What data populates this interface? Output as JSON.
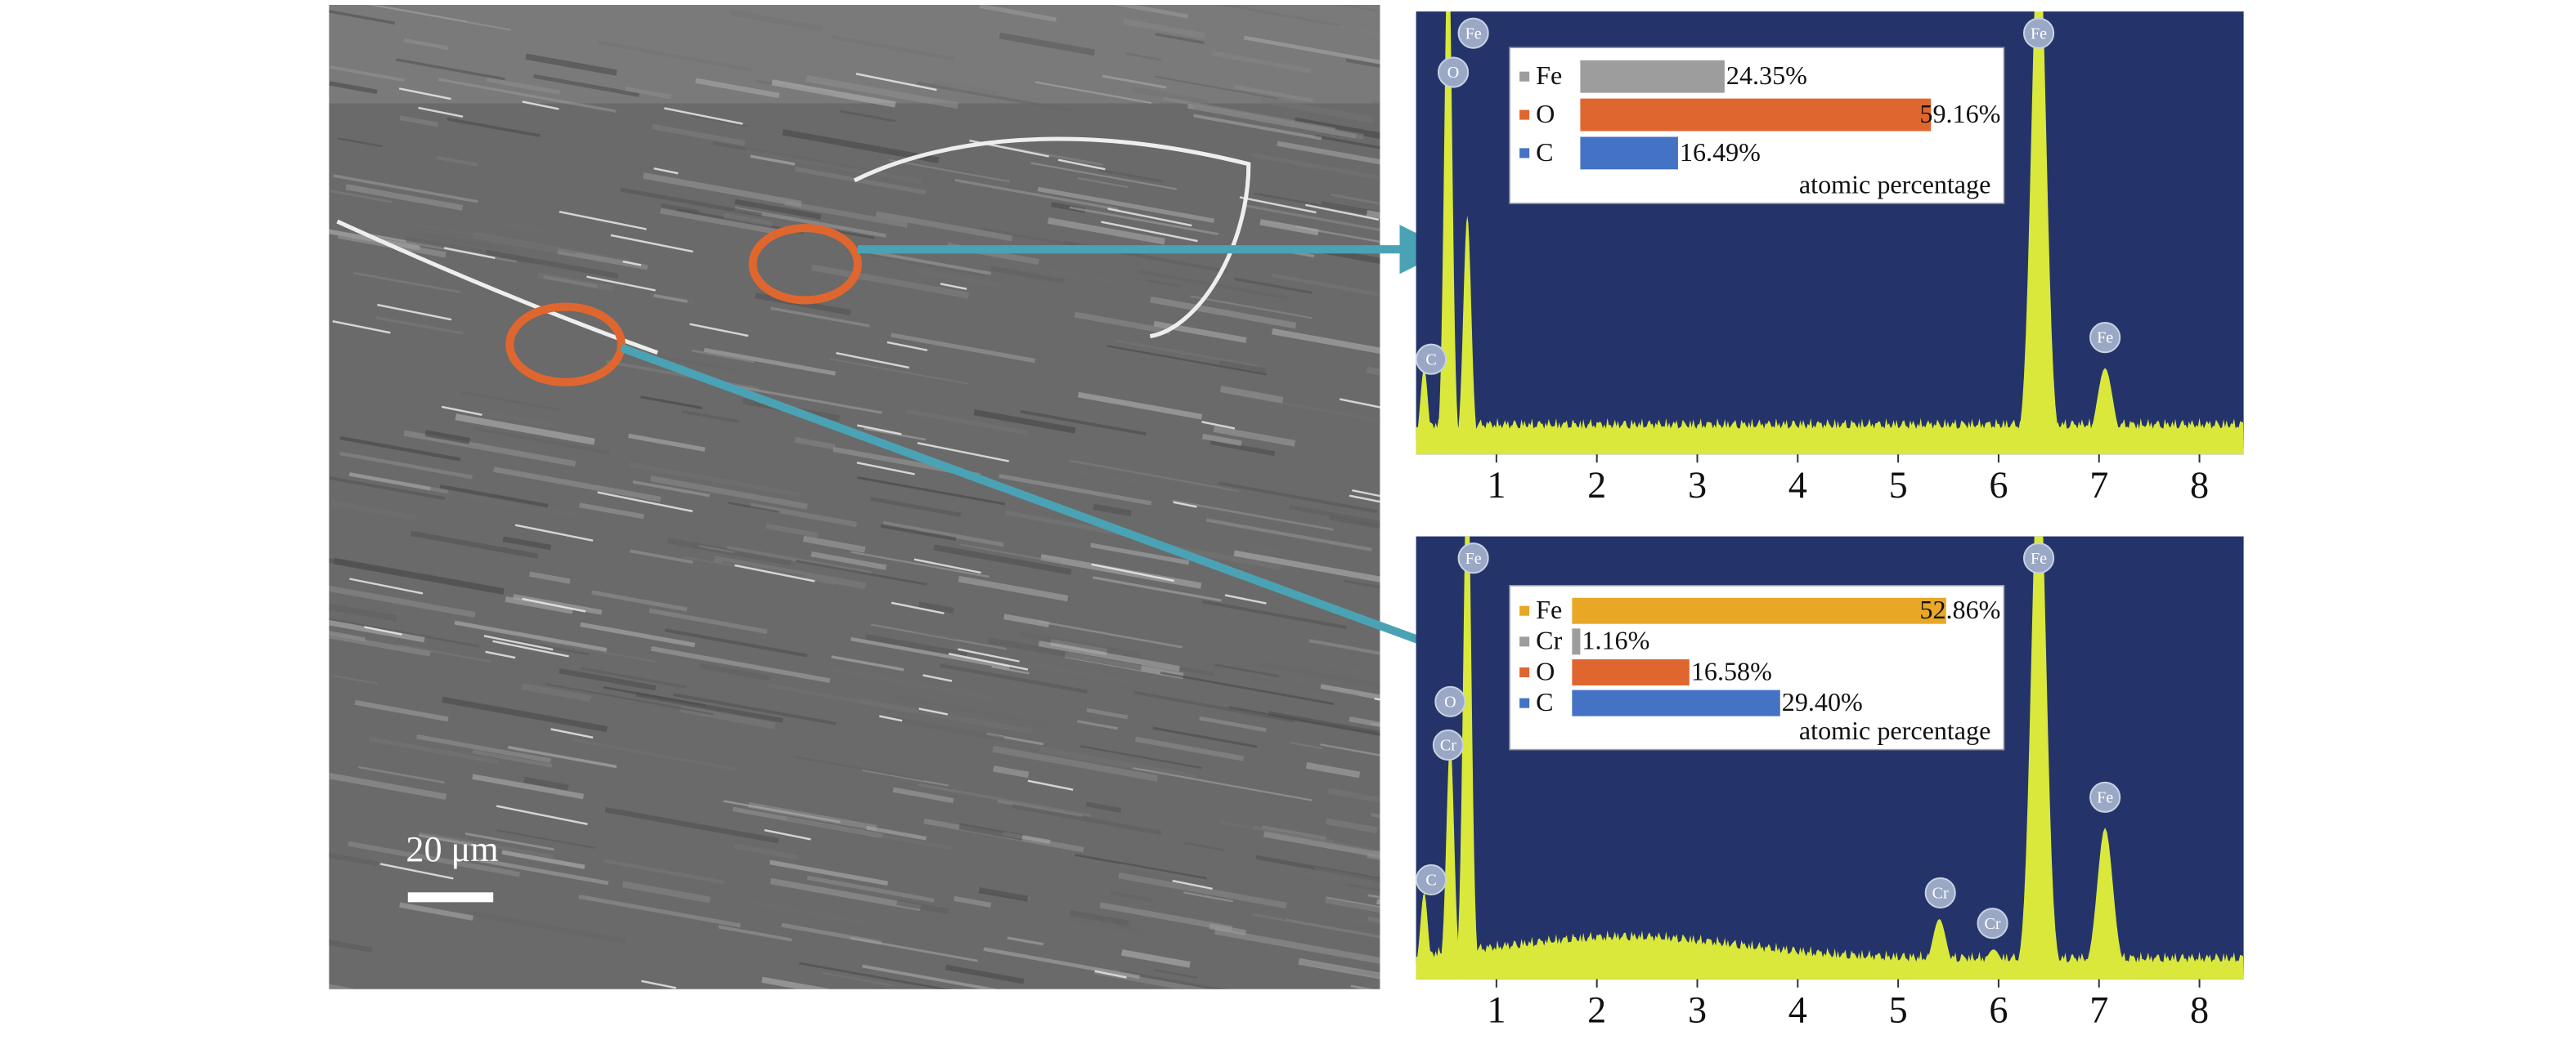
{
  "image": {
    "scale_bar": "20 μm"
  },
  "chart_data": [
    {
      "type": "spectrum",
      "xlim": [
        0.2,
        8.44
      ],
      "xticks": [
        1,
        2,
        3,
        4,
        5,
        6,
        7,
        8
      ],
      "ylim": [
        0,
        100
      ],
      "color": "#d9e83a",
      "peaks": [
        {
          "x": 0.28,
          "height": 18
        },
        {
          "x": 0.52,
          "height": 120
        },
        {
          "x": 0.71,
          "height": 53
        },
        {
          "x": 6.4,
          "height": 120
        },
        {
          "x": 7.06,
          "height": 18
        }
      ],
      "labels": [
        {
          "text": "O",
          "x": 0.57,
          "y": 86
        },
        {
          "text": "Fe",
          "x": 0.77,
          "y": 95
        },
        {
          "text": "C",
          "x": 0.35,
          "y": 20
        },
        {
          "text": "Fe",
          "x": 6.4,
          "y": 95
        },
        {
          "text": "Fe",
          "x": 7.06,
          "y": 25
        }
      ]
    },
    {
      "type": "bar",
      "categories": [
        "Fe",
        "O",
        "C"
      ],
      "values": [
        24.35,
        59.16,
        16.49
      ],
      "value_labels": [
        "24.35%",
        "59.16%",
        "16.49%"
      ],
      "colors": [
        "#9d9d9d",
        "#e0662f",
        "#4472c4"
      ],
      "xlabel": "atomic percentage"
    },
    {
      "type": "spectrum",
      "xlim": [
        0.2,
        8.44
      ],
      "xticks": [
        1,
        2,
        3,
        4,
        5,
        6,
        7,
        8
      ],
      "ylim": [
        0,
        100
      ],
      "color": "#d9e83a",
      "peaks": [
        {
          "x": 0.28,
          "height": 18
        },
        {
          "x": 0.54,
          "height": 53
        },
        {
          "x": 0.71,
          "height": 120
        },
        {
          "x": 5.41,
          "height": 12
        },
        {
          "x": 5.95,
          "height": 5
        },
        {
          "x": 6.4,
          "height": 120
        },
        {
          "x": 7.06,
          "height": 33
        }
      ],
      "labels": [
        {
          "text": "O",
          "x": 0.54,
          "y": 62
        },
        {
          "text": "Cr",
          "x": 0.52,
          "y": 52
        },
        {
          "text": "Fe",
          "x": 0.77,
          "y": 95
        },
        {
          "text": "C",
          "x": 0.35,
          "y": 21
        },
        {
          "text": "Cr",
          "x": 5.42,
          "y": 18
        },
        {
          "text": "Cr",
          "x": 5.94,
          "y": 11
        },
        {
          "text": "Fe",
          "x": 6.4,
          "y": 95
        },
        {
          "text": "Fe",
          "x": 7.06,
          "y": 40
        }
      ]
    },
    {
      "type": "bar",
      "categories": [
        "Fe",
        "Cr",
        "O",
        "C"
      ],
      "values": [
        52.86,
        1.16,
        16.58,
        29.4
      ],
      "value_labels": [
        "52.86%",
        "1.16%",
        "16.58%",
        "29.40%"
      ],
      "colors": [
        "#e8a825",
        "#9d9d9d",
        "#e0662f",
        "#4472c4"
      ],
      "xlabel": "atomic percentage"
    }
  ]
}
